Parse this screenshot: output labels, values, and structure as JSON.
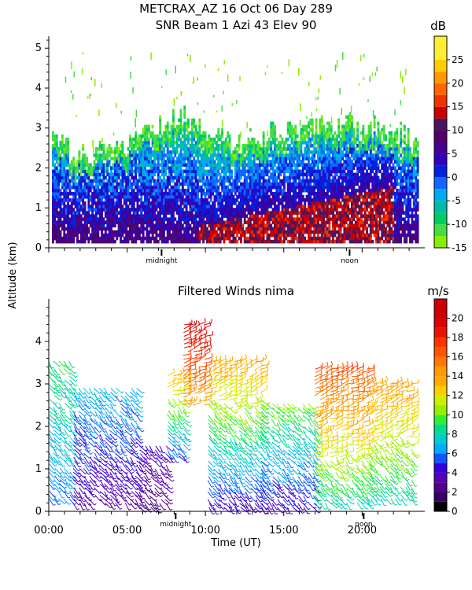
{
  "title": {
    "line1": "METCRAX_AZ  16 Oct 06 Day 289",
    "line2": "SNR Beam 1 Azi  43 Elev 90"
  },
  "y_axis_label": "Altitude (km)",
  "x_axis_label": "Time (UT)",
  "chart_data": [
    {
      "type": "heatmap",
      "title": "SNR Beam 1 Azi  43 Elev 90",
      "ylabel": "Altitude (km)",
      "ylim": [
        0,
        5.3
      ],
      "yticks": [
        "0",
        "1",
        "2",
        "3",
        "4",
        "5"
      ],
      "xlim": [
        0,
        24
      ],
      "x_markers": [
        {
          "label": "midnight",
          "x": 7.2
        },
        {
          "label": "noon",
          "x": 19.2
        }
      ],
      "colorbar": {
        "unit": "dB",
        "ticks": [
          "25",
          "20",
          "15",
          "10",
          "5",
          "0",
          "-5",
          "-10",
          "-15"
        ],
        "levels": [
          {
            "min": -15,
            "color": "#88ee00"
          },
          {
            "min": -12.5,
            "color": "#44dd44"
          },
          {
            "min": -10,
            "color": "#00cc66"
          },
          {
            "min": -7.5,
            "color": "#00bbaa"
          },
          {
            "min": -5,
            "color": "#00aaee"
          },
          {
            "min": -2.5,
            "color": "#1166ff"
          },
          {
            "min": 0,
            "color": "#0022dd"
          },
          {
            "min": 2.5,
            "color": "#3300bb"
          },
          {
            "min": 5,
            "color": "#44008a"
          },
          {
            "min": 7.5,
            "color": "#550066"
          },
          {
            "min": 10,
            "color": "#4a1560"
          },
          {
            "min": 12.5,
            "color": "#cc0000"
          },
          {
            "min": 15,
            "color": "#ee3300"
          },
          {
            "min": 17.5,
            "color": "#ff6600"
          },
          {
            "min": 20,
            "color": "#ff9900"
          },
          {
            "min": 22.5,
            "color": "#ffcc00"
          },
          {
            "min": 25,
            "color": "#ffee33"
          }
        ]
      },
      "max_height_profile_km": [
        {
          "t": 0.5,
          "h": 2.8
        },
        {
          "t": 1.5,
          "h": 2.3
        },
        {
          "t": 3,
          "h": 2.4
        },
        {
          "t": 5,
          "h": 2.5
        },
        {
          "t": 7,
          "h": 3.0
        },
        {
          "t": 8.5,
          "h": 3.3
        },
        {
          "t": 10,
          "h": 2.9
        },
        {
          "t": 12,
          "h": 2.6
        },
        {
          "t": 14,
          "h": 2.8
        },
        {
          "t": 16,
          "h": 3.0
        },
        {
          "t": 18,
          "h": 3.1
        },
        {
          "t": 20,
          "h": 3.0
        },
        {
          "t": 22,
          "h": 2.9
        },
        {
          "t": 23.5,
          "h": 2.6
        }
      ]
    },
    {
      "type": "scatter",
      "title": "Filtered Winds nima",
      "ylabel": "Altitude (km)",
      "xlabel": "Time (UT)",
      "ylim": [
        0,
        5
      ],
      "yticks": [
        "0",
        "1",
        "2",
        "3",
        "4"
      ],
      "xlim": [
        0,
        24
      ],
      "xticks": [
        "00:00",
        "05:00",
        "10:00",
        "15:00",
        "20:00"
      ],
      "x_markers": [
        {
          "label": "midnight",
          "x": 8.1
        },
        {
          "label": "noon",
          "x": 20.1
        }
      ],
      "colorbar": {
        "unit": "m/s",
        "ticks": [
          "20",
          "18",
          "16",
          "14",
          "12",
          "10",
          "8",
          "6",
          "4",
          "2",
          "0"
        ],
        "levels": [
          {
            "min": 0,
            "color": "#000000"
          },
          {
            "min": 1,
            "color": "#330066"
          },
          {
            "min": 2,
            "color": "#550088"
          },
          {
            "min": 3,
            "color": "#5500bb"
          },
          {
            "min": 4,
            "color": "#3300dd"
          },
          {
            "min": 5,
            "color": "#1155ff"
          },
          {
            "min": 6,
            "color": "#00aaff"
          },
          {
            "min": 7,
            "color": "#00cccc"
          },
          {
            "min": 8,
            "color": "#00dd88"
          },
          {
            "min": 9,
            "color": "#33ee33"
          },
          {
            "min": 10,
            "color": "#99ee00"
          },
          {
            "min": 11,
            "color": "#ccee00"
          },
          {
            "min": 12,
            "color": "#ffcc00"
          },
          {
            "min": 13,
            "color": "#ffaa00"
          },
          {
            "min": 14,
            "color": "#ff9900"
          },
          {
            "min": 15,
            "color": "#ff7700"
          },
          {
            "min": 16,
            "color": "#ff5500"
          },
          {
            "min": 17,
            "color": "#ff3300"
          },
          {
            "min": 18,
            "color": "#ee1100"
          },
          {
            "min": 19,
            "color": "#dd0000"
          },
          {
            "min": 20,
            "color": "#cc0000"
          }
        ]
      },
      "wind_columns": [
        {
          "t0": 0.0,
          "t1": 1.6,
          "hmin": 0.3,
          "hmax": 3.6,
          "speed_low": 6,
          "speed_high": 9
        },
        {
          "t0": 1.6,
          "t1": 5.8,
          "hmin": 0.2,
          "hmax": 2.9,
          "speed_low": 3,
          "speed_high": 7
        },
        {
          "t0": 5.8,
          "t1": 7.6,
          "hmin": 0.1,
          "hmax": 1.6,
          "speed_low": 2,
          "speed_high": 4
        },
        {
          "t0": 7.6,
          "t1": 8.6,
          "hmin": 1.3,
          "hmax": 3.2,
          "speed_low": 5,
          "speed_high": 13
        },
        {
          "t0": 8.6,
          "t1": 10.2,
          "hmin": 2.5,
          "hmax": 4.4,
          "speed_low": 14,
          "speed_high": 20
        },
        {
          "t0": 10.2,
          "t1": 13.6,
          "hmin": 0.1,
          "hmax": 3.6,
          "speed_low": 4,
          "speed_high": 14
        },
        {
          "t0": 13.6,
          "t1": 17.0,
          "hmin": 0.1,
          "hmax": 2.6,
          "speed_low": 4,
          "speed_high": 10
        },
        {
          "t0": 17.0,
          "t1": 20.5,
          "hmin": 0.2,
          "hmax": 3.4,
          "speed_low": 8,
          "speed_high": 17
        },
        {
          "t0": 20.5,
          "t1": 23.4,
          "hmin": 0.3,
          "hmax": 3.0,
          "speed_low": 8,
          "speed_high": 14
        }
      ]
    }
  ]
}
